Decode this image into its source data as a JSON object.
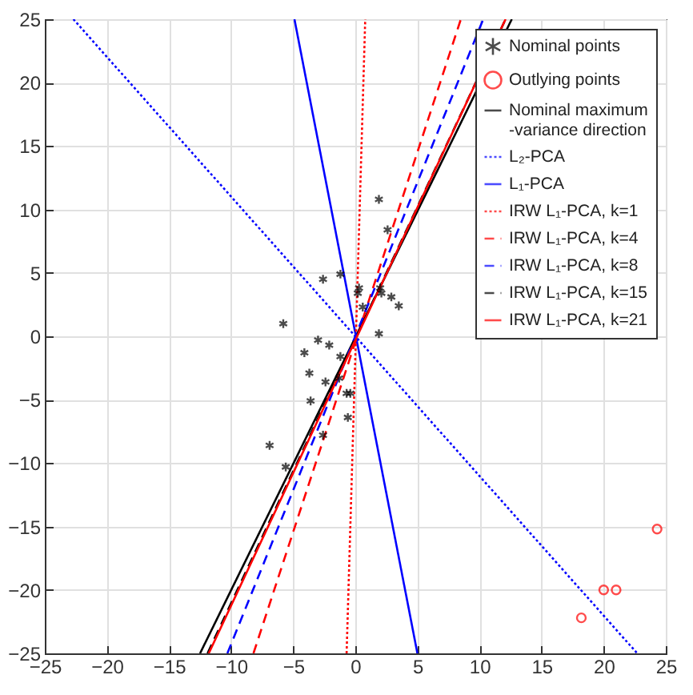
{
  "chart_data": {
    "type": "scatter",
    "xlim": [
      -25,
      25
    ],
    "ylim": [
      -25,
      25
    ],
    "xticks": [
      -25,
      -20,
      -15,
      -10,
      -5,
      0,
      5,
      10,
      15,
      20,
      25
    ],
    "yticks": [
      -25,
      -20,
      -15,
      -10,
      -5,
      0,
      5,
      10,
      15,
      20,
      25
    ],
    "grid": true,
    "legend": "top right",
    "series": [
      {
        "name": "Nominal points",
        "type": "scatter",
        "marker": "cross",
        "color": "#000000",
        "x": [
          1.9,
          2.6,
          -2.6,
          -1.2,
          0.3,
          0.2,
          2.0,
          2.1,
          2.9,
          3.5,
          0.6,
          -5.8,
          1.9,
          -3.0,
          -4.1,
          -2.1,
          -1.2,
          -3.7,
          -2.4,
          -1.3,
          -3.6,
          -0.7,
          -0.4,
          -0.6,
          -2.6,
          -6.9,
          -5.6
        ],
        "values": [
          10.8,
          8.4,
          4.5,
          4.9,
          3.8,
          3.4,
          3.8,
          3.4,
          3.1,
          2.4,
          2.3,
          1.0,
          0.2,
          -0.3,
          -1.3,
          -0.7,
          -1.6,
          -2.9,
          -3.6,
          -3.3,
          -5.1,
          -4.5,
          -4.5,
          -6.4,
          -7.8,
          -8.6,
          -10.3
        ]
      },
      {
        "name": "Outlying points",
        "type": "scatter",
        "marker": "circle",
        "color": "#ff0000",
        "x": [
          24.3,
          20,
          21,
          18.2
        ],
        "values": [
          -15.2,
          -20,
          -20,
          -22.2
        ]
      },
      {
        "name": "Nominal maximum\n-variance direction",
        "type": "line",
        "marker": "none",
        "line_style": "solid",
        "color": "#000000",
        "x": [
          -12.5,
          12.6
        ],
        "values": [
          -25,
          25
        ]
      },
      {
        "name": "L₂-PCA",
        "type": "line",
        "marker": "none",
        "line_style": "dotted",
        "color": "#0000ff",
        "x": [
          -22.7,
          22.7
        ],
        "values": [
          25,
          -25
        ]
      },
      {
        "name": "L₁-PCA",
        "type": "line",
        "marker": "none",
        "line_style": "solid",
        "color": "#0000ff",
        "x": [
          -4.9,
          5.0
        ],
        "values": [
          25,
          -25
        ]
      },
      {
        "name": "IRW L₁-PCA, k=1",
        "type": "line",
        "marker": "none",
        "line_style": "dotted",
        "color": "#ff0000",
        "x": [
          -0.7,
          0.8
        ],
        "values": [
          -25,
          25
        ]
      },
      {
        "name": "IRW L₁-PCA, k=4",
        "type": "line",
        "marker": "none",
        "line_style": "dashed",
        "color": "#ff0000",
        "x": [
          -8.2,
          8.5
        ],
        "values": [
          -25,
          25
        ]
      },
      {
        "name": "IRW L₁-PCA, k=8",
        "type": "line",
        "marker": "none",
        "line_style": "dashed",
        "color": "#0000ff",
        "x": [
          -10.3,
          10.3
        ],
        "values": [
          -25,
          25
        ]
      },
      {
        "name": "IRW L₁-PCA, k=15",
        "type": "line",
        "marker": "none",
        "line_style": "dashed",
        "color": "#000000",
        "x": [
          -11.9,
          12.1
        ],
        "values": [
          -25,
          25
        ]
      },
      {
        "name": "IRW L₁-PCA, k=21",
        "type": "line",
        "marker": "none",
        "line_style": "solid",
        "color": "#ff0000",
        "x": [
          -11.8,
          12.1
        ],
        "values": [
          -25,
          25
        ]
      }
    ]
  }
}
